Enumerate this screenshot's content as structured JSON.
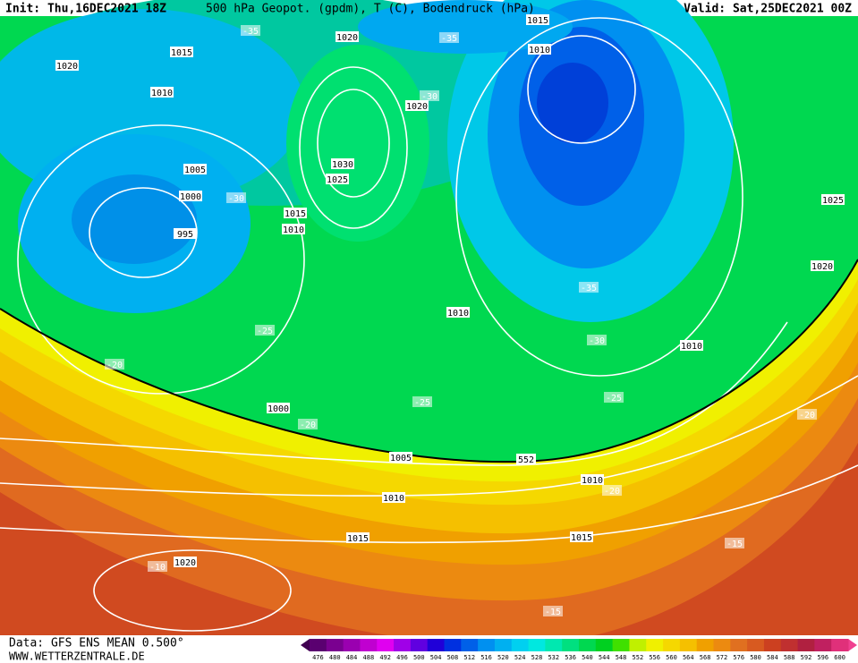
{
  "header": {
    "init": "Init: Thu,16DEC2021 18Z",
    "title": "500 hPa Geopot. (gpdm), T (C), Bodendruck (hPa)",
    "valid": "Valid: Sat,25DEC2021 00Z"
  },
  "footer": {
    "data": "Data: GFS ENS MEAN 0.500°",
    "site": "WWW.WETTERZENTRALE.DE"
  },
  "map": {
    "isobar_labels": [
      1020,
      1020,
      1015,
      1015,
      1010,
      1010,
      1020,
      1030,
      1025,
      1005,
      1000,
      995,
      1015,
      1010,
      1025,
      1020,
      1010,
      1010,
      1000,
      1005,
      1010,
      1010,
      1015,
      1015,
      1020
    ],
    "temperature_labels": [
      -35,
      -35,
      -30,
      -30,
      -35,
      -30,
      -25,
      -20,
      -25,
      -25,
      -20,
      -20,
      -20,
      -15,
      -10,
      -15
    ],
    "geopotential_labels": [
      552
    ]
  },
  "colorbar": {
    "values": [
      476,
      480,
      484,
      488,
      492,
      496,
      500,
      504,
      508,
      512,
      516,
      520,
      524,
      528,
      532,
      536,
      540,
      544,
      548,
      552,
      556,
      560,
      564,
      568,
      572,
      576,
      580,
      584,
      588,
      592,
      596,
      600
    ],
    "colors": [
      "#5a0070",
      "#7a0090",
      "#9a00b0",
      "#c000d0",
      "#e000f0",
      "#a000e8",
      "#6000e0",
      "#2000d8",
      "#0030e0",
      "#0060e8",
      "#0090f0",
      "#00b0f0",
      "#00d0f0",
      "#00e8e0",
      "#00e8b0",
      "#00e080",
      "#00d850",
      "#00d020",
      "#40e000",
      "#c0f000",
      "#f0f000",
      "#f5d800",
      "#f5c000",
      "#f0a000",
      "#ec8a10",
      "#e07020",
      "#d85a20",
      "#cc4020",
      "#c03030",
      "#b02040",
      "#c02060",
      "#e0307a"
    ]
  }
}
